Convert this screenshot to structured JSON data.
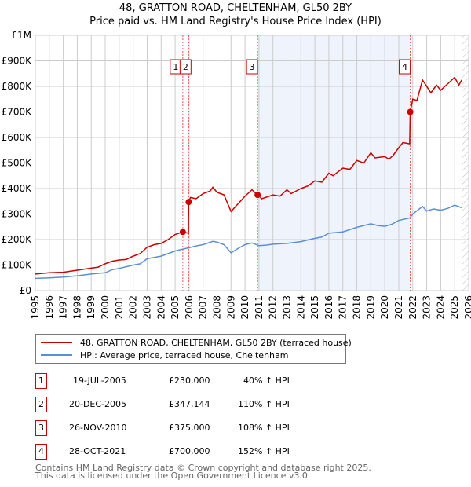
{
  "chart_data": {
    "type": "line",
    "title": "48, GRATTON ROAD, CHELTENHAM, GL50 2BY",
    "subtitle": "Price paid vs. HM Land Registry's House Price Index (HPI)",
    "xlim": [
      1995,
      2026
    ],
    "ylim": [
      0,
      1000000
    ],
    "yticks": [
      {
        "v": 0,
        "label": "£0"
      },
      {
        "v": 100000,
        "label": "£100K"
      },
      {
        "v": 200000,
        "label": "£200K"
      },
      {
        "v": 300000,
        "label": "£300K"
      },
      {
        "v": 400000,
        "label": "£400K"
      },
      {
        "v": 500000,
        "label": "£500K"
      },
      {
        "v": 600000,
        "label": "£600K"
      },
      {
        "v": 700000,
        "label": "£700K"
      },
      {
        "v": 800000,
        "label": "£800K"
      },
      {
        "v": 900000,
        "label": "£900K"
      },
      {
        "v": 1000000,
        "label": "£1M"
      }
    ],
    "xticks": [
      "1995",
      "1996",
      "1997",
      "1998",
      "1999",
      "2000",
      "2001",
      "2002",
      "2003",
      "2004",
      "2005",
      "2006",
      "2007",
      "2008",
      "2009",
      "2010",
      "2011",
      "2012",
      "2013",
      "2014",
      "2015",
      "2016",
      "2017",
      "2018",
      "2019",
      "2020",
      "2021",
      "2022",
      "2023",
      "2024",
      "2025",
      "2026"
    ],
    "shaded_range": [
      2010.9,
      2021.82
    ],
    "hatched_from": 2025.5,
    "series": [
      {
        "name": "48, GRATTON ROAD, CHELTENHAM, GL50 2BY (terraced house)",
        "color": "#cc0000",
        "points": [
          [
            1995,
            65000
          ],
          [
            1996,
            70000
          ],
          [
            1997,
            72000
          ],
          [
            1998,
            80000
          ],
          [
            1999,
            88000
          ],
          [
            1999.5,
            92000
          ],
          [
            2000,
            105000
          ],
          [
            2000.5,
            115000
          ],
          [
            2001,
            120000
          ],
          [
            2001.5,
            122000
          ],
          [
            2002,
            135000
          ],
          [
            2002.5,
            145000
          ],
          [
            2003,
            170000
          ],
          [
            2003.5,
            180000
          ],
          [
            2004,
            185000
          ],
          [
            2004.5,
            200000
          ],
          [
            2005,
            220000
          ],
          [
            2005.55,
            230000
          ],
          [
            2005.95,
            225000
          ],
          [
            2005.97,
            347144
          ],
          [
            2006.1,
            365000
          ],
          [
            2006.5,
            360000
          ],
          [
            2007,
            380000
          ],
          [
            2007.5,
            390000
          ],
          [
            2007.7,
            405000
          ],
          [
            2008,
            385000
          ],
          [
            2008.5,
            375000
          ],
          [
            2009,
            310000
          ],
          [
            2009.5,
            340000
          ],
          [
            2010,
            370000
          ],
          [
            2010.5,
            395000
          ],
          [
            2010.9,
            375000
          ],
          [
            2011.2,
            360000
          ],
          [
            2012,
            375000
          ],
          [
            2012.5,
            370000
          ],
          [
            2013,
            395000
          ],
          [
            2013.3,
            380000
          ],
          [
            2014,
            400000
          ],
          [
            2014.5,
            410000
          ],
          [
            2015,
            430000
          ],
          [
            2015.5,
            425000
          ],
          [
            2016,
            460000
          ],
          [
            2016.3,
            450000
          ],
          [
            2017,
            480000
          ],
          [
            2017.5,
            475000
          ],
          [
            2018,
            510000
          ],
          [
            2018.5,
            500000
          ],
          [
            2019,
            540000
          ],
          [
            2019.3,
            520000
          ],
          [
            2020,
            525000
          ],
          [
            2020.3,
            515000
          ],
          [
            2020.6,
            530000
          ],
          [
            2021,
            560000
          ],
          [
            2021.3,
            580000
          ],
          [
            2021.78,
            575000
          ],
          [
            2021.82,
            700000
          ],
          [
            2022,
            750000
          ],
          [
            2022.3,
            745000
          ],
          [
            2022.7,
            825000
          ],
          [
            2023,
            800000
          ],
          [
            2023.3,
            775000
          ],
          [
            2023.7,
            805000
          ],
          [
            2024,
            785000
          ],
          [
            2024.5,
            810000
          ],
          [
            2025,
            835000
          ],
          [
            2025.3,
            805000
          ],
          [
            2025.5,
            825000
          ]
        ]
      },
      {
        "name": "HPI: Average price, terraced house, Cheltenham",
        "color": "#5b8fd4",
        "points": [
          [
            1995,
            48000
          ],
          [
            1996,
            50000
          ],
          [
            1997,
            53000
          ],
          [
            1998,
            58000
          ],
          [
            1999,
            65000
          ],
          [
            2000,
            70000
          ],
          [
            2000.5,
            82000
          ],
          [
            2001,
            87000
          ],
          [
            2002,
            100000
          ],
          [
            2002.5,
            105000
          ],
          [
            2003,
            125000
          ],
          [
            2004,
            135000
          ],
          [
            2004.5,
            145000
          ],
          [
            2005,
            155000
          ],
          [
            2005.5,
            162000
          ],
          [
            2006,
            168000
          ],
          [
            2006.5,
            175000
          ],
          [
            2007,
            180000
          ],
          [
            2007.7,
            193000
          ],
          [
            2008,
            190000
          ],
          [
            2008.5,
            180000
          ],
          [
            2009,
            148000
          ],
          [
            2009.5,
            165000
          ],
          [
            2010,
            180000
          ],
          [
            2010.5,
            187000
          ],
          [
            2011,
            176000
          ],
          [
            2011.5,
            178000
          ],
          [
            2012,
            182000
          ],
          [
            2013,
            185000
          ],
          [
            2014,
            192000
          ],
          [
            2015,
            205000
          ],
          [
            2015.5,
            210000
          ],
          [
            2016,
            225000
          ],
          [
            2017,
            230000
          ],
          [
            2018,
            248000
          ],
          [
            2019,
            262000
          ],
          [
            2019.5,
            255000
          ],
          [
            2020,
            252000
          ],
          [
            2020.5,
            260000
          ],
          [
            2021,
            275000
          ],
          [
            2021.8,
            285000
          ],
          [
            2022,
            300000
          ],
          [
            2022.7,
            330000
          ],
          [
            2023,
            312000
          ],
          [
            2023.5,
            320000
          ],
          [
            2024,
            315000
          ],
          [
            2024.5,
            322000
          ],
          [
            2025,
            335000
          ],
          [
            2025.5,
            325000
          ]
        ]
      }
    ],
    "sales": [
      {
        "n": "1",
        "x": 2005.55,
        "price": 230000,
        "date": "19-JUL-2005",
        "price_label": "£230,000",
        "hpi": "40% ↑ HPI"
      },
      {
        "n": "2",
        "x": 2005.97,
        "price": 347144,
        "date": "20-DEC-2005",
        "price_label": "£347,144",
        "hpi": "110% ↑ HPI"
      },
      {
        "n": "3",
        "x": 2010.9,
        "price": 375000,
        "date": "26-NOV-2010",
        "price_label": "£375,000",
        "hpi": "108% ↑ HPI"
      },
      {
        "n": "4",
        "x": 2021.82,
        "price": 700000,
        "date": "28-OCT-2021",
        "price_label": "£700,000",
        "hpi": "152% ↑ HPI"
      }
    ]
  },
  "footer": {
    "line1": "Contains HM Land Registry data © Crown copyright and database right 2025.",
    "line2": "This data is licensed under the Open Government Licence v3.0."
  }
}
